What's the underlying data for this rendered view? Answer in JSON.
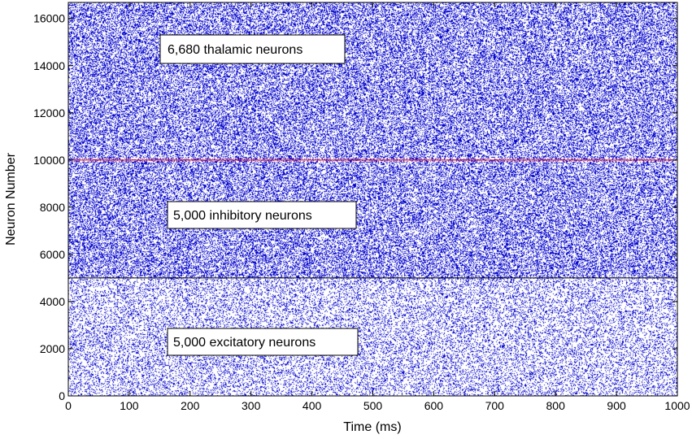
{
  "chart_data": {
    "type": "scatter",
    "title": "",
    "xlabel": "Time (ms)",
    "ylabel": "Neuron Number",
    "xlim": [
      0,
      1000
    ],
    "ylim": [
      0,
      16680
    ],
    "xticks": [
      0,
      100,
      200,
      300,
      400,
      500,
      600,
      700,
      800,
      900,
      1000
    ],
    "yticks": [
      0,
      2000,
      4000,
      6000,
      8000,
      10000,
      12000,
      14000,
      16000
    ],
    "grid": false,
    "marker_color": "#0000cc",
    "populations": [
      {
        "label": "5,000 excitatory neurons",
        "start": 0,
        "end": 5000,
        "density": "medium"
      },
      {
        "label": "5,000 inhibitory neurons",
        "start": 5000,
        "end": 10000,
        "density": "high"
      },
      {
        "label": "6,680 thalamic neurons",
        "start": 10000,
        "end": 16680,
        "density": "high"
      }
    ],
    "separators": [
      {
        "y": 5000,
        "color": "#000000"
      },
      {
        "y": 10000,
        "color": "#ff0000"
      }
    ]
  }
}
